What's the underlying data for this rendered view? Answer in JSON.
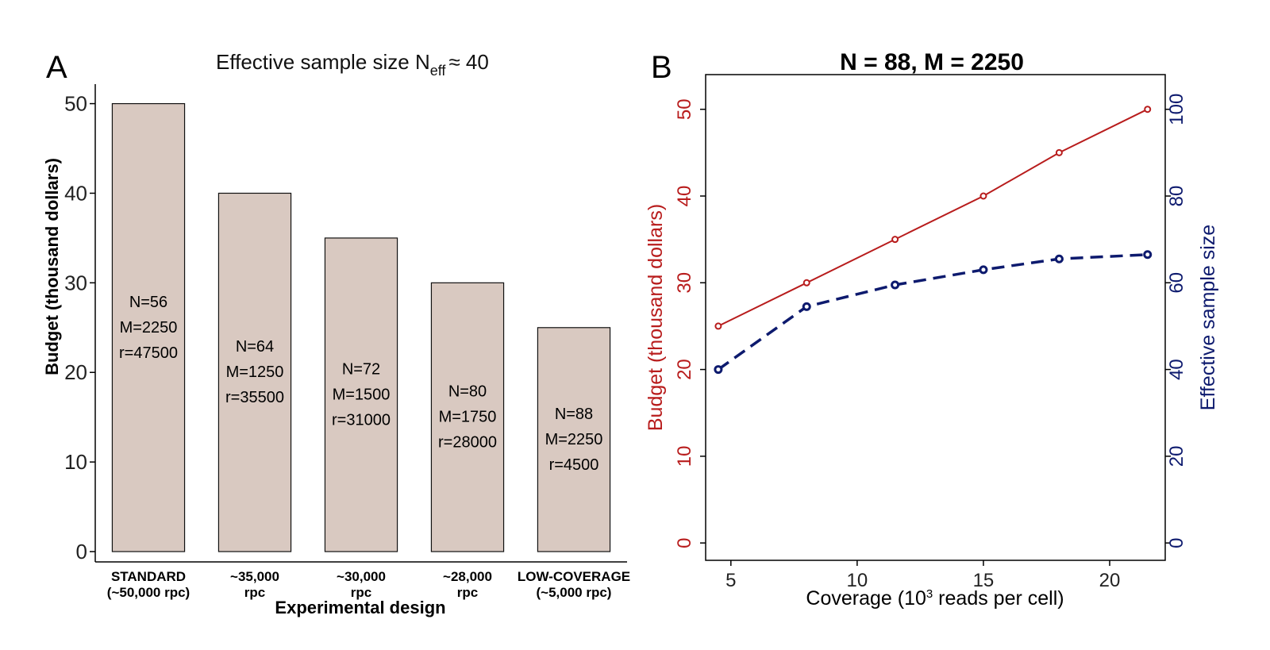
{
  "colors": {
    "bar_fill": "#d9c9c1",
    "bar_stroke": "#111111",
    "budget_line": "#b81c1c",
    "ess_line": "#0d1a6e",
    "axis": "#000000"
  },
  "chart_data": [
    {
      "panel": "A",
      "type": "bar",
      "title": "Effective sample size N",
      "title_sub": "eff",
      "title_tail": "≈ 40",
      "xlabel": "Experimental design",
      "ylabel": "Budget (thousand dollars)",
      "ylim": [
        0,
        52
      ],
      "yticks": [
        0,
        10,
        20,
        30,
        40,
        50
      ],
      "grid": false,
      "categories": [
        [
          "STANDARD",
          "(~50,000 rpc)"
        ],
        [
          "~35,000",
          "rpc"
        ],
        [
          "~30,000",
          "rpc"
        ],
        [
          "~28,000",
          "rpc"
        ],
        [
          "LOW-COVERAGE",
          "(~5,000 rpc)"
        ]
      ],
      "values": [
        50,
        40,
        35,
        30,
        25
      ],
      "bar_labels": [
        [
          "N=56",
          "M=2250",
          "r=47500"
        ],
        [
          "N=64",
          "M=1250",
          "r=35500"
        ],
        [
          "N=72",
          "M=1500",
          "r=31000"
        ],
        [
          "N=80",
          "M=1750",
          "r=28000"
        ],
        [
          "N=88",
          "M=2250",
          "r=4500"
        ]
      ]
    },
    {
      "panel": "B",
      "type": "line",
      "title": "N = 88, M = 2250",
      "xlabel_pre": "Coverage (10",
      "xlabel_sup": "3",
      "xlabel_post": " reads per cell)",
      "ylabel_left": "Budget (thousand dollars)",
      "ylabel_right": "Effective sample size",
      "xlim": [
        4,
        22.2
      ],
      "xticks": [
        5,
        10,
        15,
        20
      ],
      "ylim_left": [
        -2,
        54
      ],
      "yticks_left": [
        0,
        10,
        20,
        30,
        40,
        50
      ],
      "ylim_right": [
        -4,
        108
      ],
      "yticks_right": [
        0,
        20,
        40,
        60,
        80,
        100
      ],
      "grid": false,
      "x": [
        4.5,
        8,
        11.5,
        15,
        18,
        21.5
      ],
      "series": [
        {
          "axis": "left",
          "style": "solid",
          "values": [
            25,
            30,
            35,
            40,
            45,
            50
          ]
        },
        {
          "axis": "right",
          "style": "dashed",
          "values": [
            40,
            54.5,
            59.5,
            63,
            65.5,
            66.5
          ]
        }
      ]
    }
  ]
}
